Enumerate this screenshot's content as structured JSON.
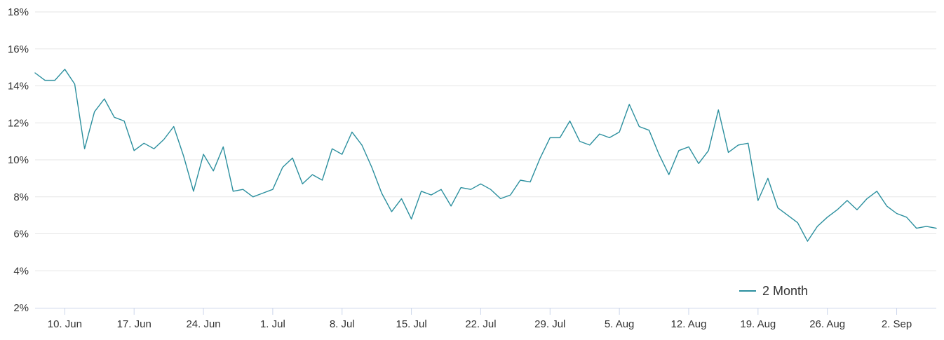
{
  "chart_data": {
    "type": "line",
    "title": "",
    "xlabel": "",
    "ylabel": "",
    "y_unit": "%",
    "ylim": [
      2,
      18
    ],
    "y_ticks": [
      2,
      4,
      6,
      8,
      10,
      12,
      14,
      16,
      18
    ],
    "y_tick_labels": [
      "2%",
      "4%",
      "6%",
      "8%",
      "10%",
      "12%",
      "14%",
      "16%",
      "18%"
    ],
    "x_range": [
      "2024-06-07",
      "2024-09-06"
    ],
    "x_ticks": [
      "2024-06-10",
      "2024-06-17",
      "2024-06-24",
      "2024-07-01",
      "2024-07-08",
      "2024-07-15",
      "2024-07-22",
      "2024-07-29",
      "2024-08-05",
      "2024-08-12",
      "2024-08-19",
      "2024-08-26",
      "2024-09-02"
    ],
    "x_tick_labels": [
      "10. Jun",
      "17. Jun",
      "24. Jun",
      "1. Jul",
      "8. Jul",
      "15. Jul",
      "22. Jul",
      "29. Jul",
      "5. Aug",
      "12. Aug",
      "19. Aug",
      "26. Aug",
      "2. Sep"
    ],
    "grid": true,
    "legend": {
      "position": "bottom-right"
    },
    "series": [
      {
        "name": "2 Month",
        "color": "#2b8f9e",
        "points": [
          [
            "2024-06-07",
            14.7
          ],
          [
            "2024-06-08",
            14.3
          ],
          [
            "2024-06-09",
            14.3
          ],
          [
            "2024-06-10",
            14.9
          ],
          [
            "2024-06-11",
            14.1
          ],
          [
            "2024-06-12",
            10.6
          ],
          [
            "2024-06-13",
            12.6
          ],
          [
            "2024-06-14",
            13.3
          ],
          [
            "2024-06-15",
            12.3
          ],
          [
            "2024-06-16",
            12.1
          ],
          [
            "2024-06-17",
            10.5
          ],
          [
            "2024-06-18",
            10.9
          ],
          [
            "2024-06-19",
            10.6
          ],
          [
            "2024-06-20",
            11.1
          ],
          [
            "2024-06-21",
            11.8
          ],
          [
            "2024-06-22",
            10.2
          ],
          [
            "2024-06-23",
            8.3
          ],
          [
            "2024-06-24",
            10.3
          ],
          [
            "2024-06-25",
            9.4
          ],
          [
            "2024-06-26",
            10.7
          ],
          [
            "2024-06-27",
            8.3
          ],
          [
            "2024-06-28",
            8.4
          ],
          [
            "2024-06-29",
            8.0
          ],
          [
            "2024-06-30",
            8.2
          ],
          [
            "2024-07-01",
            8.4
          ],
          [
            "2024-07-02",
            9.6
          ],
          [
            "2024-07-03",
            10.1
          ],
          [
            "2024-07-04",
            8.7
          ],
          [
            "2024-07-05",
            9.2
          ],
          [
            "2024-07-06",
            8.9
          ],
          [
            "2024-07-07",
            10.6
          ],
          [
            "2024-07-08",
            10.3
          ],
          [
            "2024-07-09",
            11.5
          ],
          [
            "2024-07-10",
            10.8
          ],
          [
            "2024-07-11",
            9.6
          ],
          [
            "2024-07-12",
            8.2
          ],
          [
            "2024-07-13",
            7.2
          ],
          [
            "2024-07-14",
            7.9
          ],
          [
            "2024-07-15",
            6.8
          ],
          [
            "2024-07-16",
            8.3
          ],
          [
            "2024-07-17",
            8.1
          ],
          [
            "2024-07-18",
            8.4
          ],
          [
            "2024-07-19",
            7.5
          ],
          [
            "2024-07-20",
            8.5
          ],
          [
            "2024-07-21",
            8.4
          ],
          [
            "2024-07-22",
            8.7
          ],
          [
            "2024-07-23",
            8.4
          ],
          [
            "2024-07-24",
            7.9
          ],
          [
            "2024-07-25",
            8.1
          ],
          [
            "2024-07-26",
            8.9
          ],
          [
            "2024-07-27",
            8.8
          ],
          [
            "2024-07-28",
            10.1
          ],
          [
            "2024-07-29",
            11.2
          ],
          [
            "2024-07-30",
            11.2
          ],
          [
            "2024-07-31",
            12.1
          ],
          [
            "2024-08-01",
            11.0
          ],
          [
            "2024-08-02",
            10.8
          ],
          [
            "2024-08-03",
            11.4
          ],
          [
            "2024-08-04",
            11.2
          ],
          [
            "2024-08-05",
            11.5
          ],
          [
            "2024-08-06",
            13.0
          ],
          [
            "2024-08-07",
            11.8
          ],
          [
            "2024-08-08",
            11.6
          ],
          [
            "2024-08-09",
            10.3
          ],
          [
            "2024-08-10",
            9.2
          ],
          [
            "2024-08-11",
            10.5
          ],
          [
            "2024-08-12",
            10.7
          ],
          [
            "2024-08-13",
            9.8
          ],
          [
            "2024-08-14",
            10.5
          ],
          [
            "2024-08-15",
            12.7
          ],
          [
            "2024-08-16",
            10.4
          ],
          [
            "2024-08-17",
            10.8
          ],
          [
            "2024-08-18",
            10.9
          ],
          [
            "2024-08-19",
            7.8
          ],
          [
            "2024-08-20",
            9.0
          ],
          [
            "2024-08-21",
            7.4
          ],
          [
            "2024-08-22",
            7.0
          ],
          [
            "2024-08-23",
            6.6
          ],
          [
            "2024-08-24",
            5.6
          ],
          [
            "2024-08-25",
            6.4
          ],
          [
            "2024-08-26",
            6.9
          ],
          [
            "2024-08-27",
            7.3
          ],
          [
            "2024-08-28",
            7.8
          ],
          [
            "2024-08-29",
            7.3
          ],
          [
            "2024-08-30",
            7.9
          ],
          [
            "2024-08-31",
            8.3
          ],
          [
            "2024-09-01",
            7.5
          ],
          [
            "2024-09-02",
            7.1
          ],
          [
            "2024-09-03",
            6.9
          ],
          [
            "2024-09-04",
            6.3
          ],
          [
            "2024-09-05",
            6.4
          ],
          [
            "2024-09-06",
            6.3
          ]
        ]
      }
    ]
  }
}
